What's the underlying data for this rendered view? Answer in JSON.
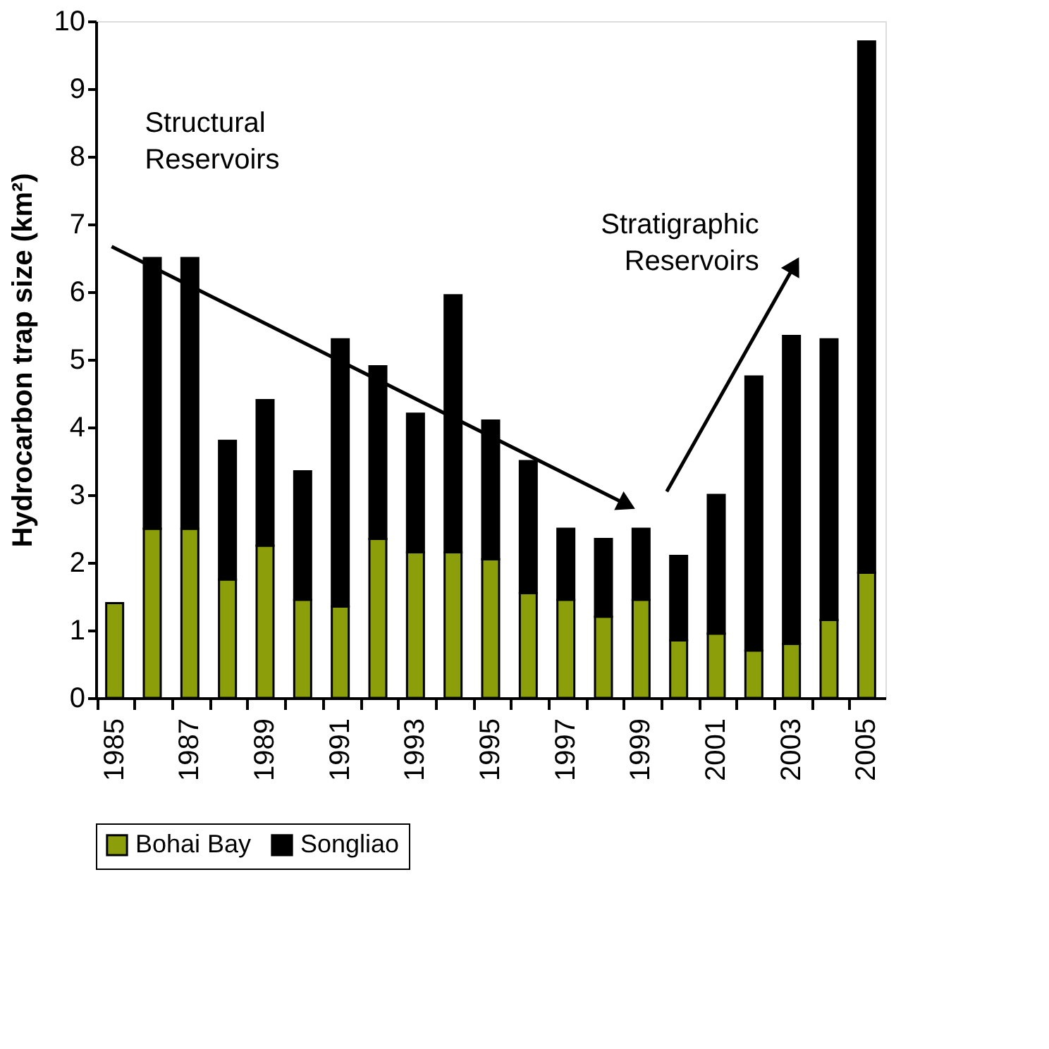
{
  "chart_data": {
    "type": "bar",
    "stacked": true,
    "categories": [
      "1985",
      null,
      "1987",
      null,
      "1989",
      null,
      "1991",
      null,
      "1993",
      null,
      "1995",
      null,
      "1997",
      null,
      "1999",
      null,
      "2001",
      null,
      "2003",
      null,
      "2005"
    ],
    "series": [
      {
        "name": "Bohai Bay",
        "color": "#8c9e0a",
        "values": [
          1.4,
          2.5,
          2.5,
          1.75,
          2.25,
          1.45,
          1.35,
          2.35,
          2.15,
          2.15,
          2.05,
          1.55,
          1.45,
          1.2,
          1.45,
          0.85,
          0.95,
          0.7,
          0.8,
          1.15,
          1.85
        ]
      },
      {
        "name": "Songliao",
        "color": "#000000",
        "values": [
          0,
          4.0,
          4.0,
          2.05,
          2.15,
          1.9,
          3.95,
          2.55,
          2.05,
          3.8,
          2.05,
          1.95,
          1.05,
          1.15,
          1.05,
          1.25,
          2.05,
          4.05,
          4.55,
          4.15,
          7.85
        ]
      }
    ],
    "ylabel": "Hydrocarbon trap size (km²)",
    "ylim": [
      0,
      10
    ],
    "yticks": [
      0,
      1,
      2,
      3,
      4,
      5,
      6,
      7,
      8,
      9,
      10
    ],
    "grid": false,
    "legend": "bottom",
    "annotations": [
      "Structural\nReservoirs",
      "Stratigraphic\nReservoirs"
    ]
  }
}
